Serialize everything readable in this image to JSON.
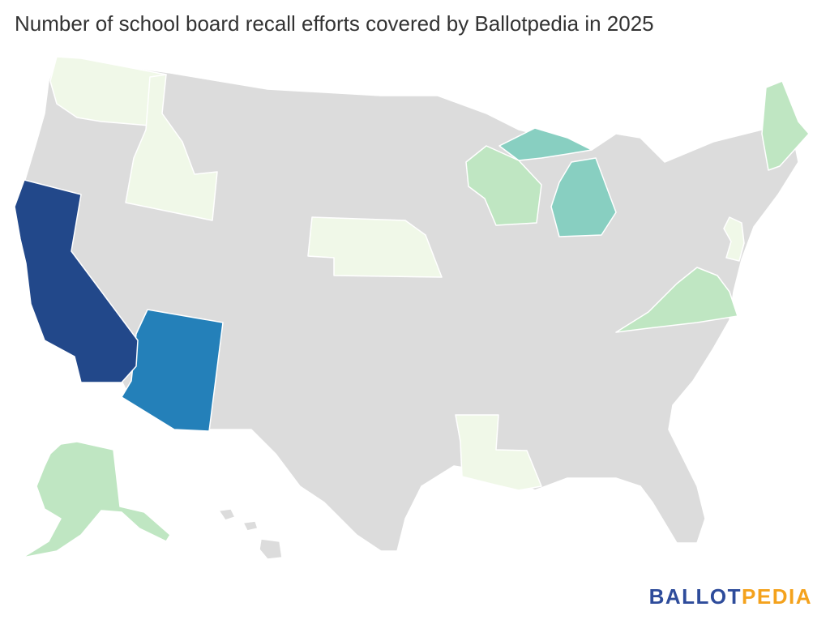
{
  "title": "Number of school board recall efforts covered by Ballotpedia in 2025",
  "logo": {
    "part1": "BALLOT",
    "part2": "PEDIA",
    "color1": "#2E4C9B",
    "color2": "#F4A21D"
  },
  "colors": {
    "none": "#DCDCDC",
    "level1": "#F0F8E8",
    "level2": "#BFE6C2",
    "level3": "#88CFC1",
    "level4": "#2480B9",
    "level5": "#22488A"
  },
  "states": [
    {
      "name": "Washington",
      "level": 1
    },
    {
      "name": "Idaho",
      "level": 1
    },
    {
      "name": "Nebraska",
      "level": 1
    },
    {
      "name": "New Jersey",
      "level": 1
    },
    {
      "name": "Louisiana",
      "level": 1
    },
    {
      "name": "Wisconsin",
      "level": 2
    },
    {
      "name": "Maine",
      "level": 2
    },
    {
      "name": "Virginia",
      "level": 2
    },
    {
      "name": "Alaska",
      "level": 2
    },
    {
      "name": "Michigan",
      "level": 3
    },
    {
      "name": "Arizona",
      "level": 4
    },
    {
      "name": "California",
      "level": 5
    }
  ]
}
